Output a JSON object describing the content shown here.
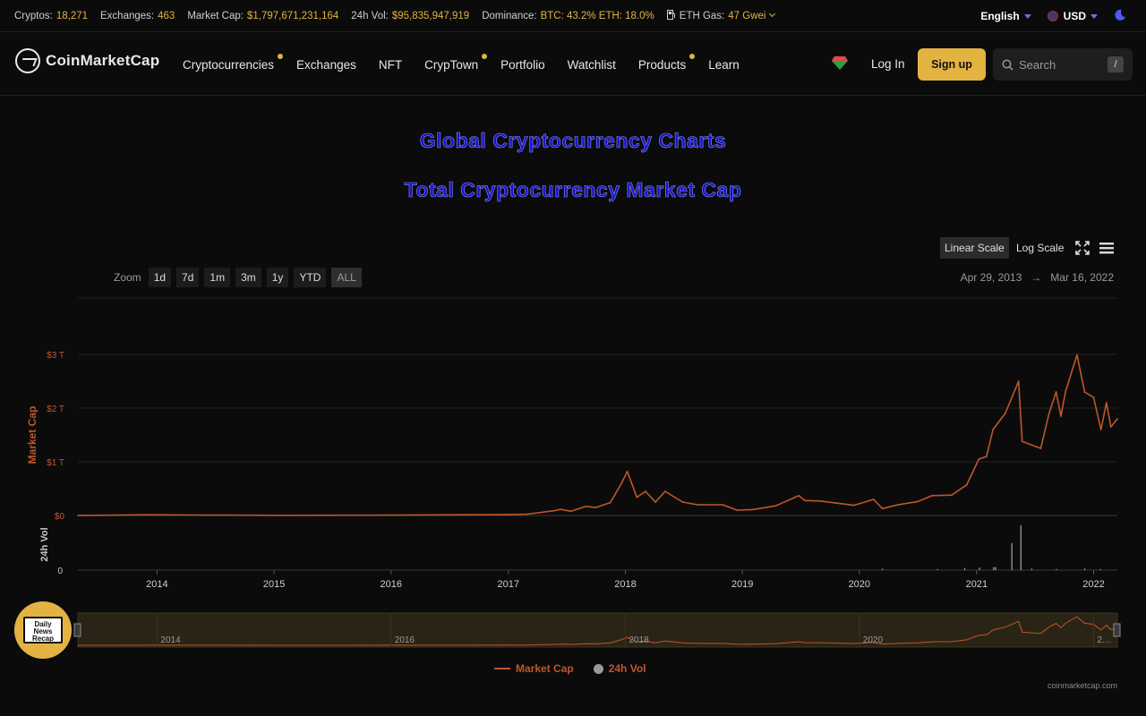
{
  "topbar": {
    "stats": [
      {
        "label": "Cryptos:",
        "value": "18,271"
      },
      {
        "label": "Exchanges:",
        "value": "463"
      },
      {
        "label": "Market Cap:",
        "value": "$1,797,671,231,164"
      },
      {
        "label": "24h Vol:",
        "value": "$95,835,947,919"
      },
      {
        "label": "Dominance:",
        "value": "BTC: 43.2% ETH: 18.0%"
      },
      {
        "label": "ETH Gas:",
        "value": "47 Gwei"
      }
    ],
    "language": "English",
    "currency": "USD"
  },
  "nav": {
    "logo_text": "CoinMarketCap",
    "items": [
      {
        "label": "Cryptocurrencies",
        "dot": true
      },
      {
        "label": "Exchanges",
        "dot": false
      },
      {
        "label": "NFT",
        "dot": false
      },
      {
        "label": "CrypTown",
        "dot": true
      },
      {
        "label": "Portfolio",
        "dot": false
      },
      {
        "label": "Watchlist",
        "dot": false
      },
      {
        "label": "Products",
        "dot": true
      },
      {
        "label": "Learn",
        "dot": false
      }
    ],
    "login_label": "Log In",
    "signup_label": "Sign up",
    "search_placeholder": "Search",
    "search_shortcut": "/"
  },
  "page": {
    "title": "Global Cryptocurrency Charts",
    "chart_title": "Total Cryptocurrency Market Cap"
  },
  "controls": {
    "linear_label": "Linear Scale",
    "log_label": "Log Scale",
    "zoom_label": "Zoom",
    "zoom_options": [
      "1d",
      "7d",
      "1m",
      "3m",
      "1y",
      "YTD",
      "ALL"
    ],
    "zoom_active": "ALL",
    "range_start": "Apr 29, 2013",
    "range_arrow": "→",
    "range_end": "Mar 16, 2022"
  },
  "badge_text": "Daily News Recap",
  "credit": "coinmarketcap.com",
  "colors": {
    "accent": "#e3b341",
    "series": "#c0562a",
    "volume": "#9a9a9a"
  },
  "chart_data": {
    "type": "line",
    "title": "Total Cryptocurrency Market Cap",
    "xlabel": "",
    "ylabel": "Market Cap",
    "y2label": "24h Vol",
    "scale": "linear",
    "ylim": [
      0,
      3
    ],
    "yunit": "T USD",
    "yticks": [
      "$0",
      "$1 T",
      "$2 T",
      "$3 T"
    ],
    "vol_ticks": [
      "0"
    ],
    "xlim": [
      "2013-04-29",
      "2022-03-16"
    ],
    "xticks": [
      "2014",
      "2015",
      "2016",
      "2017",
      "2018",
      "2019",
      "2020",
      "2021",
      "2022"
    ],
    "navigator_ticks": [
      "2014",
      "2016",
      "2018",
      "2020",
      "2…"
    ],
    "legend": [
      "Market Cap",
      "24h Vol"
    ],
    "legend_position": "bottom",
    "grid": true,
    "series": [
      {
        "name": "Market Cap",
        "points": [
          [
            "2013-04-29",
            0.0015
          ],
          [
            "2013-11-30",
            0.013
          ],
          [
            "2014-06-01",
            0.009
          ],
          [
            "2015-01-15",
            0.004
          ],
          [
            "2016-01-01",
            0.007
          ],
          [
            "2016-12-31",
            0.018
          ],
          [
            "2017-03-01",
            0.025
          ],
          [
            "2017-05-25",
            0.09
          ],
          [
            "2017-06-12",
            0.115
          ],
          [
            "2017-07-15",
            0.08
          ],
          [
            "2017-08-31",
            0.17
          ],
          [
            "2017-10-01",
            0.15
          ],
          [
            "2017-11-15",
            0.24
          ],
          [
            "2017-12-20",
            0.6
          ],
          [
            "2018-01-07",
            0.82
          ],
          [
            "2018-02-06",
            0.34
          ],
          [
            "2018-03-05",
            0.45
          ],
          [
            "2018-04-05",
            0.25
          ],
          [
            "2018-05-05",
            0.45
          ],
          [
            "2018-06-29",
            0.25
          ],
          [
            "2018-08-15",
            0.2
          ],
          [
            "2018-11-01",
            0.2
          ],
          [
            "2018-12-15",
            0.1
          ],
          [
            "2019-02-01",
            0.11
          ],
          [
            "2019-04-15",
            0.18
          ],
          [
            "2019-06-26",
            0.37
          ],
          [
            "2019-07-15",
            0.28
          ],
          [
            "2019-09-01",
            0.27
          ],
          [
            "2019-12-15",
            0.19
          ],
          [
            "2020-02-14",
            0.3
          ],
          [
            "2020-03-13",
            0.13
          ],
          [
            "2020-05-01",
            0.2
          ],
          [
            "2020-07-01",
            0.26
          ],
          [
            "2020-08-15",
            0.37
          ],
          [
            "2020-10-15",
            0.38
          ],
          [
            "2020-12-01",
            0.57
          ],
          [
            "2021-01-08",
            1.05
          ],
          [
            "2021-02-01",
            1.1
          ],
          [
            "2021-02-21",
            1.6
          ],
          [
            "2021-03-31",
            1.9
          ],
          [
            "2021-05-12",
            2.5
          ],
          [
            "2021-05-23",
            1.38
          ],
          [
            "2021-07-20",
            1.25
          ],
          [
            "2021-08-15",
            1.9
          ],
          [
            "2021-09-06",
            2.3
          ],
          [
            "2021-09-21",
            1.85
          ],
          [
            "2021-10-05",
            2.3
          ],
          [
            "2021-11-10",
            2.99
          ],
          [
            "2021-12-04",
            2.3
          ],
          [
            "2022-01-01",
            2.2
          ],
          [
            "2022-01-24",
            1.6
          ],
          [
            "2022-02-10",
            2.1
          ],
          [
            "2022-02-24",
            1.65
          ],
          [
            "2022-03-16",
            1.8
          ]
        ]
      },
      {
        "name": "24h Vol",
        "points": [
          [
            "2020-03-13",
            0.03
          ],
          [
            "2020-09-01",
            0.02
          ],
          [
            "2020-11-25",
            0.04
          ],
          [
            "2021-01-10",
            0.05
          ],
          [
            "2021-02-23",
            0.06
          ],
          [
            "2021-03-01",
            0.06
          ],
          [
            "2021-04-21",
            0.53
          ],
          [
            "2021-05-19",
            0.88
          ],
          [
            "2021-06-22",
            0.03
          ],
          [
            "2021-09-07",
            0.02
          ],
          [
            "2021-12-04",
            0.03
          ],
          [
            "2022-01-22",
            0.02
          ]
        ]
      }
    ]
  }
}
